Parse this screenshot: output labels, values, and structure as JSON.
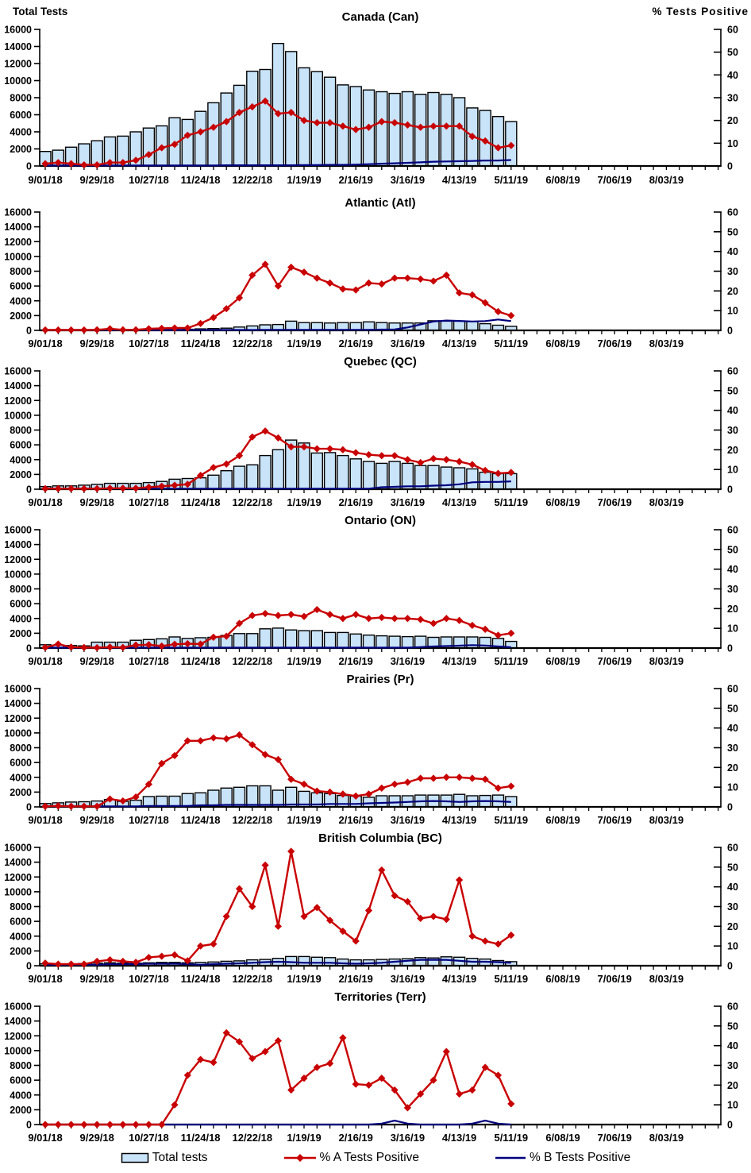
{
  "page": {
    "left_axis_header": "Total Tests",
    "right_axis_header": "% Tests Positive",
    "legend": [
      {
        "label": "Total tests",
        "swatch": "bar-swatch"
      },
      {
        "label": "% A Tests Positive",
        "swatch": "red-line-diamond-swatch"
      },
      {
        "label": "% B Tests Positive",
        "swatch": "navy-line-swatch"
      }
    ],
    "colors": {
      "bar_fill": "#C9E3F8",
      "bar_stroke": "#000000",
      "line_a": "#C90000",
      "line_b": "#00007E",
      "axis": "#000000"
    }
  },
  "axes": {
    "left_max": 16000,
    "right_max": 60,
    "left_tick_labels": [
      "16000",
      "14000",
      "12000",
      "10000",
      "8000",
      "6000",
      "4000",
      "2000",
      "0"
    ],
    "right_tick_labels": [
      "60",
      "50",
      "40",
      "30",
      "20",
      "10",
      "0"
    ],
    "x_tick_labels": [
      "9/01/18",
      "9/29/18",
      "10/27/18",
      "11/24/18",
      "12/22/18",
      "1/19/19",
      "2/16/19",
      "3/16/19",
      "4/13/19",
      "5/11/19",
      "6/08/19",
      "7/06/19",
      "8/03/19"
    ],
    "weeks_total": 53,
    "label_every_weeks": 4
  },
  "chart_data": [
    {
      "type": "bar+line combo",
      "key": "canada",
      "title": "Canada (Can)",
      "total_tests": [
        1700,
        1850,
        2200,
        2600,
        2950,
        3400,
        3500,
        4000,
        4450,
        4700,
        5650,
        5450,
        6400,
        7400,
        8550,
        9450,
        11100,
        11300,
        14350,
        13400,
        11500,
        11050,
        10400,
        9500,
        9300,
        8900,
        8700,
        8500,
        8700,
        8400,
        8600,
        8400,
        8000,
        6800,
        6500,
        5800,
        5200
      ],
      "pct_a_positive": [
        1,
        1.5,
        1,
        0.5,
        0.5,
        1.5,
        1.5,
        2.5,
        5,
        8,
        9.5,
        13.5,
        15,
        17,
        19.5,
        23.5,
        26,
        28.5,
        23,
        23.5,
        20,
        19,
        19,
        17.5,
        16,
        17,
        19.5,
        19,
        18,
        17,
        17.5,
        17.5,
        17.5,
        13,
        11,
        8,
        9
      ],
      "pct_b_positive": [
        0.2,
        0.2,
        0.2,
        0.2,
        0.2,
        0.2,
        0.2,
        0.2,
        0.2,
        0.2,
        0.2,
        0.2,
        0.2,
        0.2,
        0.3,
        0.3,
        0.3,
        0.3,
        0.3,
        0.3,
        0.4,
        0.4,
        0.5,
        0.5,
        0.6,
        0.8,
        1,
        1.2,
        1.4,
        1.6,
        1.9,
        2,
        2.1,
        2.2,
        2.4,
        2.4,
        2.6
      ]
    },
    {
      "type": "bar+line combo",
      "key": "atlantic",
      "title": "Atlantic (Atl)",
      "total_tests": [
        50,
        50,
        60,
        60,
        80,
        80,
        80,
        80,
        100,
        100,
        120,
        150,
        200,
        250,
        300,
        450,
        600,
        750,
        800,
        1250,
        1050,
        1050,
        1000,
        1050,
        1050,
        1150,
        1050,
        1000,
        1000,
        1000,
        1300,
        1250,
        1250,
        1200,
        900,
        700,
        550
      ],
      "pct_a_positive": [
        0.2,
        0.2,
        0.2,
        0.2,
        0.3,
        0.8,
        0.3,
        0.3,
        0.8,
        1,
        1.2,
        1.2,
        3.5,
        6.5,
        11,
        16.5,
        28,
        33.5,
        22.5,
        32,
        29.5,
        26.5,
        24,
        21,
        20.5,
        24,
        23.5,
        26.5,
        26.5,
        26,
        25,
        28,
        19,
        18,
        14,
        9.5,
        7.5
      ],
      "pct_b_positive": [
        0.2,
        0.2,
        0.2,
        0.2,
        0.2,
        0.2,
        0.2,
        0.2,
        0.2,
        0.2,
        0.2,
        0.2,
        0.2,
        0.2,
        0.2,
        0.2,
        0.2,
        0.3,
        0.3,
        0.3,
        0.3,
        0.3,
        0.3,
        0.3,
        0.3,
        0.3,
        0.4,
        0.5,
        1.5,
        3,
        4.5,
        5,
        4.8,
        4.5,
        4.7,
        5.5,
        4.7
      ]
    },
    {
      "type": "bar+line combo",
      "key": "quebec",
      "title": "Quebec (QC)",
      "total_tests": [
        350,
        450,
        450,
        550,
        650,
        800,
        800,
        800,
        900,
        1050,
        1350,
        1450,
        1550,
        1900,
        2500,
        3100,
        3300,
        4550,
        5350,
        6650,
        6250,
        4900,
        4950,
        4550,
        4100,
        3750,
        3500,
        3750,
        3500,
        3200,
        3200,
        3000,
        2900,
        2750,
        2300,
        2100,
        2100
      ],
      "pct_a_positive": [
        0.3,
        0.3,
        0.3,
        0.3,
        0.3,
        0.5,
        0.5,
        0.5,
        1,
        1.5,
        2,
        2.5,
        7,
        11,
        12.8,
        17,
        26.5,
        29.5,
        26,
        21.5,
        21.5,
        20.5,
        20.5,
        20,
        18.5,
        17.5,
        17,
        17,
        15,
        13.5,
        15.5,
        15,
        14,
        12.5,
        9.5,
        8,
        8.5
      ],
      "pct_b_positive": [
        0.3,
        0.3,
        0.3,
        0.3,
        0.3,
        0.3,
        0.3,
        0.3,
        0.3,
        0.3,
        0.3,
        0.3,
        0.3,
        0.3,
        0.3,
        0.3,
        0.3,
        0.3,
        0.3,
        0.3,
        0.3,
        0.3,
        0.3,
        0.3,
        0.3,
        0.3,
        1,
        1.2,
        1.5,
        1.5,
        1.8,
        2,
        2.5,
        3.5,
        3.7,
        3.7,
        4
      ]
    },
    {
      "type": "bar+line combo",
      "key": "ontario",
      "title": "Ontario (ON)",
      "total_tests": [
        450,
        400,
        350,
        300,
        800,
        800,
        800,
        1050,
        1150,
        1250,
        1500,
        1300,
        1400,
        1450,
        1700,
        1950,
        1950,
        2600,
        2700,
        2450,
        2350,
        2350,
        2100,
        2100,
        1900,
        1750,
        1650,
        1600,
        1550,
        1600,
        1450,
        1500,
        1500,
        1500,
        1450,
        1300,
        900
      ],
      "pct_a_positive": [
        0.3,
        2,
        0.5,
        0.3,
        0.2,
        0.5,
        0.3,
        1.5,
        1.7,
        1,
        1.9,
        2.2,
        2,
        5.5,
        6,
        12.5,
        16.5,
        17.5,
        16.5,
        17,
        16,
        19.5,
        17,
        15,
        17,
        15,
        15.5,
        15,
        15,
        14.5,
        12.5,
        15,
        14,
        11.5,
        9.5,
        6.5,
        7.5
      ],
      "pct_b_positive": [
        0.2,
        0.2,
        0.2,
        0.2,
        0.2,
        0.2,
        0.2,
        0.2,
        0.2,
        0.2,
        0.2,
        0.2,
        0.2,
        0.2,
        0.2,
        0.2,
        0.2,
        0.2,
        0.2,
        0.2,
        0.2,
        0.2,
        0.2,
        0.2,
        0.2,
        0.2,
        0.2,
        0.2,
        0.2,
        0.5,
        0.8,
        1,
        1.2,
        1.5,
        1.3,
        0.8,
        0.4
      ]
    },
    {
      "type": "bar+line combo",
      "key": "prairies",
      "title": "Prairies (Pr)",
      "total_tests": [
        450,
        550,
        650,
        700,
        800,
        1000,
        750,
        900,
        1400,
        1450,
        1450,
        1800,
        1900,
        2250,
        2550,
        2650,
        2850,
        2850,
        2250,
        2650,
        2100,
        1900,
        1800,
        1550,
        1450,
        1300,
        1500,
        1500,
        1500,
        1600,
        1600,
        1600,
        1700,
        1500,
        1550,
        1600,
        1400
      ],
      "pct_a_positive": [
        0.3,
        0.5,
        0.3,
        0.3,
        0.3,
        4,
        3,
        5,
        11.5,
        22,
        26,
        33.5,
        33.5,
        35,
        34.5,
        36.5,
        31.5,
        26.5,
        24,
        14,
        11.5,
        8,
        7.5,
        6.5,
        5.5,
        6.5,
        9.5,
        11.5,
        12.5,
        14.5,
        14.5,
        15,
        15,
        14.5,
        14,
        9.5,
        10.5
      ],
      "pct_b_positive": [
        0.3,
        0.3,
        0.3,
        0.3,
        0.3,
        0.3,
        0.3,
        0.3,
        0.5,
        0.5,
        0.5,
        0.5,
        0.8,
        0.8,
        1,
        1,
        1,
        1,
        1,
        1.2,
        1.2,
        1.2,
        1.5,
        1.5,
        1.5,
        1.8,
        2,
        2.2,
        2.5,
        2.8,
        3,
        2.8,
        2.5,
        2.8,
        3,
        2.8,
        2.5
      ]
    },
    {
      "type": "bar+line combo",
      "key": "british-columbia",
      "title": "British Columbia (BC)",
      "total_tests": [
        250,
        250,
        250,
        300,
        350,
        400,
        350,
        350,
        400,
        450,
        450,
        400,
        450,
        500,
        600,
        650,
        800,
        850,
        1000,
        1250,
        1250,
        1150,
        1100,
        900,
        800,
        800,
        850,
        900,
        950,
        1100,
        1050,
        1200,
        1150,
        1000,
        900,
        700,
        550
      ],
      "pct_a_positive": [
        1.3,
        0.8,
        0.8,
        0.8,
        2.2,
        3,
        2.2,
        1.7,
        4.2,
        4.8,
        5.5,
        2.5,
        10,
        11,
        25,
        39,
        30,
        51,
        20,
        58,
        25,
        29.5,
        23,
        17.5,
        12.5,
        28,
        48.5,
        35.5,
        32.5,
        24,
        25,
        23.5,
        43.5,
        15,
        12.5,
        11,
        15.5
      ],
      "pct_b_positive": [
        0.5,
        0.5,
        0.5,
        0.5,
        0.5,
        0.8,
        0.8,
        0.8,
        1,
        1,
        1,
        0.8,
        0.5,
        0.8,
        1,
        1.2,
        1.5,
        1.8,
        2,
        1.8,
        1.5,
        1.5,
        1.5,
        1.2,
        1,
        1.2,
        1.5,
        2,
        2.5,
        3,
        3,
        3,
        2.5,
        2,
        2,
        1.8,
        1.5
      ]
    },
    {
      "type": "bar+line combo",
      "key": "territories",
      "title": "Territories (Terr)",
      "total_tests": [
        0,
        0,
        0,
        0,
        0,
        0,
        0,
        0,
        0,
        0,
        0,
        0,
        0,
        0,
        0,
        0,
        0,
        0,
        0,
        0,
        0,
        0,
        0,
        0,
        0,
        0,
        0,
        0,
        0,
        0,
        0,
        0,
        0,
        0,
        0,
        0,
        0
      ],
      "pct_a_positive": [
        0,
        0,
        0,
        0,
        0,
        0,
        0,
        0,
        0,
        0,
        10,
        25,
        33,
        31.5,
        46.5,
        42,
        33.5,
        37,
        42.5,
        17.5,
        23.5,
        29,
        31,
        44,
        20.5,
        20,
        23.5,
        17.5,
        8.5,
        15.5,
        22.5,
        37,
        15.5,
        17.5,
        29,
        25,
        10.5
      ],
      "pct_b_positive": [
        0,
        0,
        0,
        0,
        0,
        0,
        0,
        0,
        0,
        0,
        0,
        0,
        0,
        0,
        0,
        0,
        0,
        0,
        0,
        0,
        0,
        0,
        0,
        0,
        0,
        0,
        0.5,
        2,
        0.5,
        0,
        0,
        0,
        0,
        0.5,
        2,
        0.5,
        0
      ]
    }
  ]
}
